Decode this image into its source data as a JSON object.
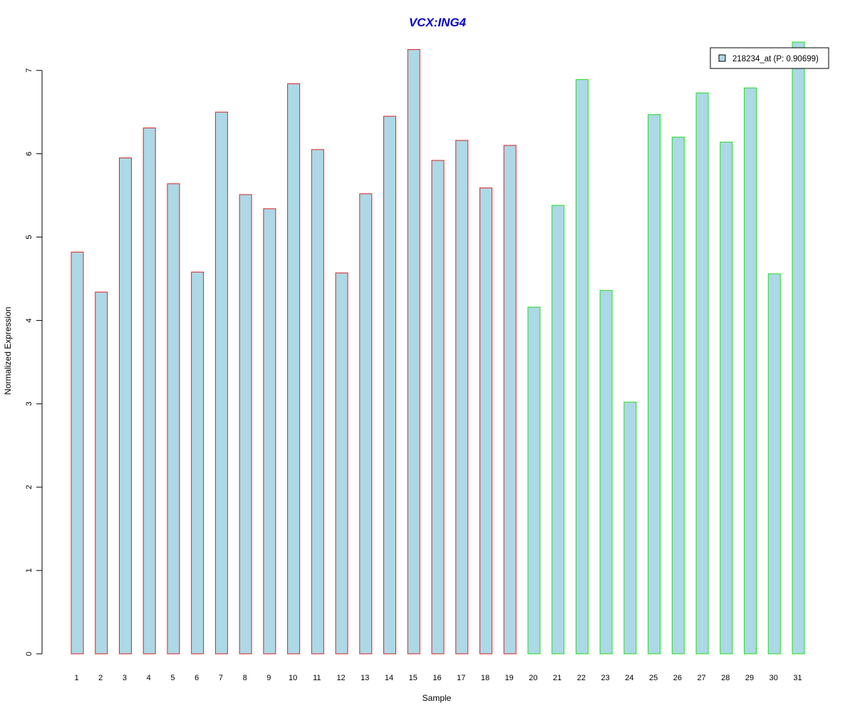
{
  "chart_data": {
    "type": "bar",
    "title": "VCX:ING4",
    "xlabel": "Sample",
    "ylabel": "Normalized Expression",
    "categories": [
      "1",
      "2",
      "3",
      "4",
      "5",
      "6",
      "7",
      "8",
      "9",
      "10",
      "11",
      "12",
      "13",
      "14",
      "15",
      "16",
      "17",
      "18",
      "19",
      "20",
      "21",
      "22",
      "23",
      "24",
      "25",
      "26",
      "27",
      "28",
      "29",
      "30",
      "31"
    ],
    "series": [
      {
        "name": "218234_at (P: 0.90699)",
        "values": [
          4.82,
          4.34,
          5.95,
          6.31,
          5.64,
          4.58,
          6.5,
          5.51,
          5.34,
          6.84,
          6.05,
          4.57,
          5.52,
          6.45,
          7.25,
          5.92,
          6.16,
          5.59,
          6.1,
          4.16,
          5.38,
          6.89,
          4.36,
          3.02,
          6.47,
          6.2,
          6.73,
          6.14,
          6.79,
          4.56,
          7.34
        ]
      }
    ],
    "group_colors": [
      "#dd2222",
      "#dd2222",
      "#dd2222",
      "#dd2222",
      "#dd2222",
      "#dd2222",
      "#dd2222",
      "#dd2222",
      "#dd2222",
      "#dd2222",
      "#dd2222",
      "#dd2222",
      "#dd2222",
      "#dd2222",
      "#dd2222",
      "#dd2222",
      "#dd2222",
      "#dd2222",
      "#dd2222",
      "#22dd22",
      "#22dd22",
      "#22dd22",
      "#22dd22",
      "#22dd22",
      "#22dd22",
      "#22dd22",
      "#22dd22",
      "#22dd22",
      "#22dd22",
      "#22dd22",
      "#22dd22"
    ],
    "yticks": [
      "0",
      "1",
      "2",
      "3",
      "4",
      "5",
      "6",
      "7"
    ],
    "ylim": [
      0,
      7.34
    ],
    "bar_fill": "#add8e6",
    "title_color": "#0000cc",
    "legend_position": "top-right",
    "grid": false
  }
}
